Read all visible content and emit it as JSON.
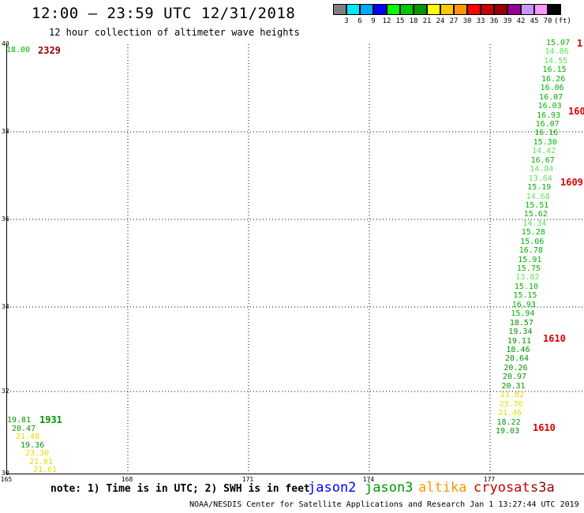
{
  "title": "12:00 – 23:59 UTC 12/31/2018",
  "subtitle": "12 hour collection of altimeter wave heights",
  "legend": {
    "swatches": [
      "#808080",
      "#00e8ff",
      "#00a8ff",
      "#0000ff",
      "#00ff00",
      "#00c800",
      "#009600",
      "#ffff00",
      "#ffc800",
      "#ff9600",
      "#ff0000",
      "#c80000",
      "#960000",
      "#960096",
      "#c896ff",
      "#ff96ff",
      "#000000"
    ],
    "labels": [
      "3",
      "6",
      "9",
      "12",
      "15",
      "18",
      "21",
      "24",
      "27",
      "30",
      "33",
      "36",
      "39",
      "42",
      "45",
      "70",
      "(ft)"
    ]
  },
  "axes": {
    "lat_labels": [
      "40",
      "38",
      "36",
      "34",
      "32",
      "30"
    ],
    "lon_labels": [
      "165",
      "168",
      "171",
      "174",
      "177"
    ]
  },
  "left_track": {
    "top_value": "18.00",
    "top_time": "2329",
    "values": [
      "19.81",
      "20.47",
      "21.48",
      "19.36",
      "23.30",
      "21.01",
      "21.61"
    ],
    "time": "1931"
  },
  "right_track": {
    "values": [
      "15.07",
      "14.86",
      "14.55",
      "16.15",
      "16.26",
      "16.06",
      "16.07",
      "16.03",
      "16.93",
      "16.07",
      "16.16",
      "15.30",
      "14.42",
      "16.67",
      "14.84",
      "13.64",
      "15.19",
      "14.68",
      "15.51",
      "15.62",
      "14.34",
      "15.28",
      "15.06",
      "16.78",
      "15.91",
      "15.75",
      "13.82",
      "15.10",
      "15.15",
      "16.93",
      "15.94",
      "18.57",
      "19.34",
      "19.11",
      "18.46",
      "20.64",
      "20.26",
      "20.97",
      "20.31",
      "21.82",
      "23.76",
      "21.46",
      "18.22",
      "19.03"
    ],
    "times": [
      "1",
      "160",
      "1609",
      "1610",
      "1610"
    ]
  },
  "note": "note:  1) Time is in UTC;  2) SWH is in feet",
  "satellites": [
    {
      "name": "jason2",
      "color": "#0000ff"
    },
    {
      "name": "jason3",
      "color": "#009600"
    },
    {
      "name": "altika",
      "color": "#ff9600"
    },
    {
      "name": "cryosat",
      "color": "#c80000"
    },
    {
      "name": "s3a",
      "color": "#960000"
    }
  ],
  "footer": "NOAA/NESDIS Center for Satellite Applications and Research   Jan  1 13:27:44 UTC 2019"
}
